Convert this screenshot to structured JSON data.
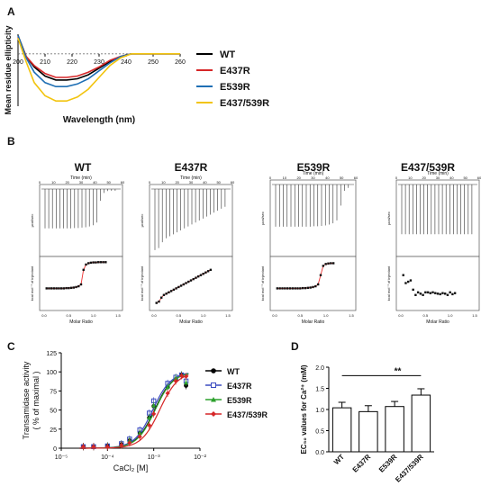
{
  "panels": {
    "A": "A",
    "B": "B",
    "C": "C",
    "D": "D"
  },
  "chart_data": [
    {
      "id": "A",
      "type": "line",
      "xlabel": "Wavelength (nm)",
      "ylabel": "Mean residue ellipticity",
      "xlim": [
        200,
        260
      ],
      "xticks": [
        "200",
        "210",
        "220",
        "230",
        "240",
        "250",
        "260"
      ],
      "legend_position": "right",
      "series": [
        {
          "name": "WT",
          "color": "#000000",
          "x": [
            200,
            203,
            206,
            210,
            214,
            218,
            222,
            226,
            230,
            234,
            238,
            242,
            246,
            250,
            260
          ],
          "y": [
            14,
            -2,
            -10,
            -17,
            -20,
            -20,
            -19,
            -16,
            -11,
            -6,
            -2,
            0,
            0,
            0,
            0
          ]
        },
        {
          "name": "E437R",
          "color": "#d62728",
          "x": [
            200,
            203,
            206,
            210,
            214,
            218,
            222,
            226,
            230,
            234,
            238,
            242,
            246,
            250,
            260
          ],
          "y": [
            13,
            -2,
            -9,
            -15,
            -18,
            -18,
            -17,
            -14,
            -10,
            -5,
            -2,
            0,
            0,
            0,
            0
          ]
        },
        {
          "name": "E539R",
          "color": "#1f6fb4",
          "x": [
            200,
            203,
            206,
            210,
            214,
            218,
            222,
            226,
            230,
            234,
            238,
            242,
            246,
            250,
            260
          ],
          "y": [
            14,
            -3,
            -14,
            -22,
            -25,
            -25,
            -23,
            -19,
            -13,
            -7,
            -2,
            0,
            0,
            0,
            0
          ]
        },
        {
          "name": "E437/539R",
          "color": "#f2c40f",
          "x": [
            200,
            203,
            206,
            210,
            214,
            218,
            222,
            226,
            230,
            234,
            238,
            242,
            246,
            250,
            260
          ],
          "y": [
            12,
            -6,
            -22,
            -32,
            -36,
            -36,
            -33,
            -27,
            -18,
            -9,
            -3,
            0,
            0,
            0,
            0
          ]
        }
      ]
    },
    {
      "id": "B",
      "type": "scatter",
      "titles": [
        "WT",
        "E437R",
        "E539R",
        "E437/539R"
      ],
      "top_xlabel": "Time (min)",
      "top_ylabel": "µcal/sec",
      "bottom_xlabel": "Molar Ratio",
      "bottom_ylabel": "kcal mol⁻¹ of injectant",
      "time_ticks": [
        "0",
        "10",
        "20",
        "30",
        "40",
        "50",
        "60"
      ],
      "ratio_ticks": [
        "0.0",
        "0.5",
        "1.0",
        "1.5"
      ],
      "isotherms": [
        {
          "x": [
            0.05,
            0.1,
            0.15,
            0.2,
            0.25,
            0.3,
            0.35,
            0.4,
            0.45,
            0.5,
            0.55,
            0.6,
            0.65,
            0.7,
            0.75,
            0.8,
            0.85,
            0.9,
            0.95,
            1.0,
            1.05,
            1.1,
            1.15,
            1.2,
            1.25
          ],
          "y": [
            -10,
            -10,
            -10,
            -10,
            -10,
            -10,
            -10,
            -10,
            -9.9,
            -9.9,
            -9.8,
            -9.7,
            -9.5,
            -9.2,
            -8.5,
            -3,
            -1,
            -0.5,
            -0.3,
            -0.2,
            -0.2,
            -0.1,
            -0.1,
            -0.1,
            -0.1
          ],
          "fit": true
        },
        {
          "x": [
            0.05,
            0.1,
            0.15,
            0.2,
            0.25,
            0.3,
            0.35,
            0.4,
            0.45,
            0.5,
            0.55,
            0.6,
            0.65,
            0.7,
            0.75,
            0.8,
            0.85,
            0.9,
            0.95,
            1.0,
            1.05,
            1.1,
            1.15
          ],
          "y": [
            -15.5,
            -15,
            -13.5,
            -12.5,
            -12,
            -11.5,
            -11,
            -10.5,
            -10,
            -9.5,
            -9,
            -8.5,
            -8,
            -7.5,
            -7,
            -6.5,
            -6,
            -5.5,
            -5,
            -4.5,
            -4,
            -3.5,
            -3
          ],
          "fit": true
        },
        {
          "x": [
            0.05,
            0.1,
            0.15,
            0.2,
            0.25,
            0.3,
            0.35,
            0.4,
            0.45,
            0.5,
            0.55,
            0.6,
            0.65,
            0.7,
            0.75,
            0.8,
            0.85,
            0.9,
            0.95,
            1.0,
            1.05,
            1.1,
            1.15
          ],
          "y": [
            -10,
            -10,
            -10,
            -10,
            -10,
            -10,
            -10,
            -10,
            -10,
            -10,
            -9.9,
            -9.9,
            -9.8,
            -9.7,
            -9.5,
            -9.2,
            -8.5,
            -5,
            -1.5,
            -0.8,
            -0.6,
            -0.5,
            -0.5
          ],
          "fit": true
        },
        {
          "x": [
            0.05,
            0.1,
            0.15,
            0.2,
            0.25,
            0.3,
            0.35,
            0.4,
            0.45,
            0.5,
            0.55,
            0.6,
            0.65,
            0.7,
            0.75,
            0.8,
            0.85,
            0.9,
            0.95,
            1.0,
            1.05,
            1.1
          ],
          "y": [
            -5,
            -8,
            -7.5,
            -7,
            -10.5,
            -12.5,
            -11.5,
            -12,
            -12.5,
            -11.5,
            -11.5,
            -11.8,
            -11.5,
            -11.8,
            -12,
            -12.2,
            -11.8,
            -12,
            -12.5,
            -11.5,
            -12.2,
            -11.8
          ],
          "fit": false
        }
      ]
    },
    {
      "id": "C",
      "type": "scatter",
      "xlabel": "CaCl₂ [M]",
      "ylabel": "Transamidase activity\n( % of maximal )",
      "xscale": "log",
      "xlim": [
        1e-05,
        0.01
      ],
      "ylim": [
        0,
        125
      ],
      "yticks": [
        "0",
        "25",
        "50",
        "75",
        "100",
        "125"
      ],
      "xticks": [
        "10⁻⁵",
        "10⁻⁴",
        "10⁻³",
        "10⁻²"
      ],
      "legend_position": "right",
      "series": [
        {
          "name": "WT",
          "color": "#000000",
          "marker": "circle",
          "x": [
            3e-05,
            5e-05,
            0.0001,
            0.0002,
            0.0003,
            0.0005,
            0.0008,
            0.001,
            0.002,
            0.003,
            0.004,
            0.005
          ],
          "y": [
            2,
            2,
            3,
            5,
            10,
            20,
            40,
            55,
            80,
            90,
            96,
            82
          ],
          "ec50": 0.00104
        },
        {
          "name": "E437R",
          "color": "#3b4cc0",
          "marker": "square",
          "x": [
            3e-05,
            5e-05,
            0.0001,
            0.0002,
            0.0003,
            0.0005,
            0.0008,
            0.001,
            0.002,
            0.003,
            0.004,
            0.005
          ],
          "y": [
            2,
            2,
            3,
            6,
            12,
            24,
            46,
            62,
            85,
            93,
            96,
            88
          ],
          "ec50": 0.00095
        },
        {
          "name": "E539R",
          "color": "#2ca02c",
          "marker": "triangle",
          "x": [
            3e-05,
            5e-05,
            0.0001,
            0.0002,
            0.0003,
            0.0005,
            0.0008,
            0.001,
            0.002,
            0.003,
            0.004,
            0.005
          ],
          "y": [
            2,
            2,
            3,
            5,
            10,
            20,
            40,
            56,
            80,
            92,
            96,
            86
          ],
          "ec50": 0.00107
        },
        {
          "name": "E437/539R",
          "color": "#d62728",
          "marker": "diamond",
          "x": [
            3e-05,
            5e-05,
            0.0001,
            0.0002,
            0.0003,
            0.0005,
            0.0008,
            0.001,
            0.002,
            0.003,
            0.004,
            0.005
          ],
          "y": [
            2,
            2,
            2,
            4,
            7,
            15,
            30,
            45,
            72,
            88,
            95,
            94
          ],
          "ec50": 0.00134
        }
      ]
    },
    {
      "id": "D",
      "type": "bar",
      "ylabel": "EC₅₀ values for Ca²⁺ (mM)",
      "categories": [
        "WT",
        "E437R",
        "E539R",
        "E437/539R"
      ],
      "values": [
        1.04,
        0.95,
        1.07,
        1.34
      ],
      "errors": [
        0.13,
        0.14,
        0.12,
        0.15
      ],
      "ylim": [
        0,
        2.0
      ],
      "yticks": [
        "0.0",
        "0.5",
        "1.0",
        "1.5",
        "2.0"
      ],
      "annotation": "**"
    }
  ]
}
